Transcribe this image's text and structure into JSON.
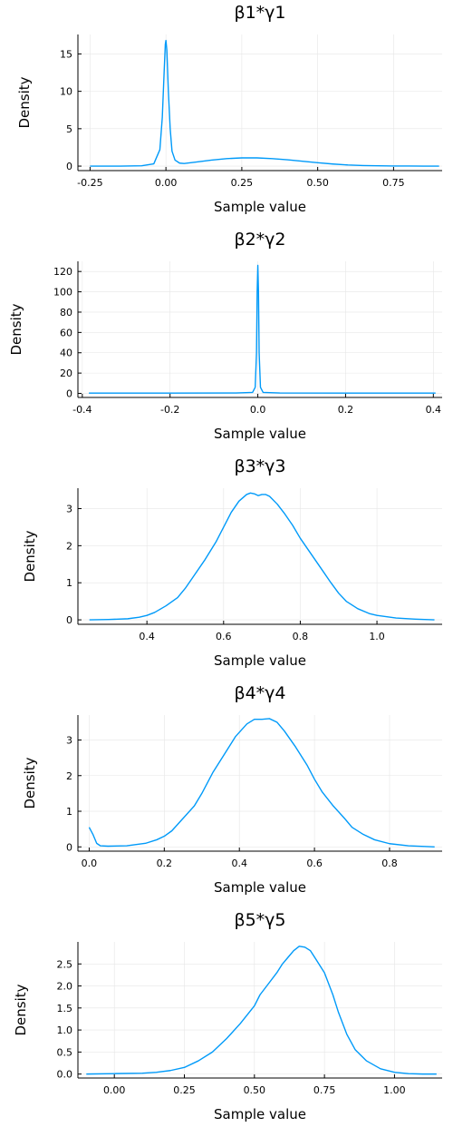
{
  "chart_data": [
    {
      "type": "line",
      "title": "β1*γ1",
      "xlabel": "Sample value",
      "ylabel": "Density",
      "xlim": [
        -0.29,
        0.91
      ],
      "ylim": [
        -0.6,
        17.6
      ],
      "xticks": [
        -0.25,
        0.0,
        0.25,
        0.5,
        0.75
      ],
      "xtick_labels": [
        "-0.25",
        "0.00",
        "0.25",
        "0.50",
        "0.75"
      ],
      "yticks": [
        0,
        5,
        10,
        15
      ],
      "ytick_labels": [
        "0",
        "5",
        "10",
        "15"
      ],
      "grid": true,
      "legend": "none",
      "series": [
        {
          "color": "#009af9",
          "x": [
            -0.25,
            -0.15,
            -0.08,
            -0.04,
            -0.02,
            -0.012,
            -0.006,
            -0.002,
            0.0,
            0.003,
            0.008,
            0.014,
            0.02,
            0.03,
            0.045,
            0.06,
            0.1,
            0.15,
            0.2,
            0.25,
            0.3,
            0.35,
            0.4,
            0.45,
            0.5,
            0.55,
            0.6,
            0.65,
            0.7,
            0.75,
            0.8,
            0.85,
            0.9
          ],
          "y": [
            0.0,
            0.0,
            0.05,
            0.3,
            2.2,
            6.5,
            12.5,
            16.3,
            16.8,
            15.5,
            10.0,
            5.0,
            2.0,
            0.8,
            0.4,
            0.35,
            0.55,
            0.8,
            1.0,
            1.1,
            1.1,
            1.0,
            0.85,
            0.65,
            0.45,
            0.28,
            0.15,
            0.08,
            0.04,
            0.02,
            0.01,
            0.0,
            0.0
          ]
        }
      ]
    },
    {
      "type": "line",
      "title": "β2*γ2",
      "xlabel": "Sample value",
      "ylabel": "Density",
      "xlim": [
        -0.41,
        0.42
      ],
      "ylim": [
        -4,
        130
      ],
      "xticks": [
        -0.4,
        -0.2,
        0.0,
        0.2,
        0.4
      ],
      "xtick_labels": [
        "-0.4",
        "-0.2",
        "0.0",
        "0.2",
        "0.4"
      ],
      "yticks": [
        0,
        20,
        40,
        60,
        80,
        100,
        120
      ],
      "ytick_labels": [
        "0",
        "20",
        "40",
        "60",
        "80",
        "100",
        "120"
      ],
      "grid": true,
      "legend": "none",
      "series": [
        {
          "color": "#009af9",
          "x": [
            -0.385,
            -0.2,
            -0.05,
            -0.012,
            -0.006,
            -0.003,
            -0.0015,
            0.0,
            0.0015,
            0.003,
            0.006,
            0.012,
            0.05,
            0.2,
            0.405
          ],
          "y": [
            0.3,
            0.3,
            0.4,
            1.0,
            6.0,
            40.0,
            100.0,
            126.0,
            100.0,
            40.0,
            6.0,
            1.0,
            0.4,
            0.3,
            0.3
          ]
        }
      ]
    },
    {
      "type": "line",
      "title": "β3*γ3",
      "xlabel": "Sample value",
      "ylabel": "Density",
      "xlim": [
        0.22,
        1.17
      ],
      "ylim": [
        -0.12,
        3.55
      ],
      "xticks": [
        0.4,
        0.6,
        0.8,
        1.0
      ],
      "xtick_labels": [
        "0.4",
        "0.6",
        "0.8",
        "1.0"
      ],
      "yticks": [
        0,
        1,
        2,
        3
      ],
      "ytick_labels": [
        "0",
        "1",
        "2",
        "3"
      ],
      "grid": true,
      "legend": "none",
      "series": [
        {
          "color": "#009af9",
          "x": [
            0.25,
            0.3,
            0.35,
            0.38,
            0.4,
            0.42,
            0.45,
            0.48,
            0.5,
            0.52,
            0.55,
            0.58,
            0.6,
            0.62,
            0.64,
            0.66,
            0.67,
            0.68,
            0.69,
            0.7,
            0.71,
            0.72,
            0.74,
            0.76,
            0.78,
            0.8,
            0.82,
            0.84,
            0.86,
            0.88,
            0.9,
            0.92,
            0.95,
            0.98,
            1.0,
            1.05,
            1.1,
            1.15
          ],
          "y": [
            0.0,
            0.01,
            0.03,
            0.07,
            0.12,
            0.2,
            0.38,
            0.6,
            0.85,
            1.15,
            1.6,
            2.1,
            2.5,
            2.9,
            3.2,
            3.38,
            3.42,
            3.4,
            3.35,
            3.38,
            3.38,
            3.33,
            3.12,
            2.85,
            2.55,
            2.2,
            1.9,
            1.6,
            1.3,
            1.0,
            0.72,
            0.5,
            0.3,
            0.17,
            0.12,
            0.05,
            0.02,
            0.0
          ]
        }
      ]
    },
    {
      "type": "line",
      "title": "β4*γ4",
      "xlabel": "Sample value",
      "ylabel": "Density",
      "xlim": [
        -0.03,
        0.94
      ],
      "ylim": [
        -0.12,
        3.7
      ],
      "xticks": [
        0.0,
        0.2,
        0.4,
        0.6,
        0.8
      ],
      "xtick_labels": [
        "0.0",
        "0.2",
        "0.4",
        "0.6",
        "0.8"
      ],
      "yticks": [
        0,
        1,
        2,
        3
      ],
      "ytick_labels": [
        "0",
        "1",
        "2",
        "3"
      ],
      "grid": true,
      "legend": "none",
      "series": [
        {
          "color": "#009af9",
          "x": [
            0.0,
            0.01,
            0.02,
            0.03,
            0.05,
            0.1,
            0.15,
            0.18,
            0.2,
            0.22,
            0.25,
            0.28,
            0.3,
            0.33,
            0.36,
            0.39,
            0.42,
            0.44,
            0.46,
            0.48,
            0.5,
            0.52,
            0.55,
            0.58,
            0.6,
            0.62,
            0.65,
            0.68,
            0.7,
            0.73,
            0.76,
            0.8,
            0.85,
            0.9,
            0.92
          ],
          "y": [
            0.55,
            0.35,
            0.1,
            0.03,
            0.02,
            0.03,
            0.1,
            0.2,
            0.3,
            0.45,
            0.8,
            1.15,
            1.5,
            2.1,
            2.6,
            3.1,
            3.45,
            3.58,
            3.58,
            3.6,
            3.5,
            3.25,
            2.8,
            2.3,
            1.9,
            1.55,
            1.15,
            0.8,
            0.55,
            0.35,
            0.2,
            0.09,
            0.03,
            0.01,
            0.0
          ]
        }
      ]
    },
    {
      "type": "line",
      "title": "β5*γ5",
      "xlabel": "Sample value",
      "ylabel": "Density",
      "xlim": [
        -0.13,
        1.17
      ],
      "ylim": [
        -0.09,
        3.0
      ],
      "xticks": [
        0.0,
        0.25,
        0.5,
        0.75,
        1.0
      ],
      "xtick_labels": [
        "0.00",
        "0.25",
        "0.50",
        "0.75",
        "1.00"
      ],
      "yticks": [
        0,
        0.5,
        1.0,
        1.5,
        2.0,
        2.5
      ],
      "ytick_labels": [
        "0.0",
        "0.5",
        "1.0",
        "1.5",
        "2.0",
        "2.5"
      ],
      "grid": true,
      "legend": "none",
      "series": [
        {
          "color": "#009af9",
          "x": [
            -0.1,
            0.0,
            0.1,
            0.15,
            0.2,
            0.25,
            0.3,
            0.35,
            0.4,
            0.45,
            0.5,
            0.52,
            0.55,
            0.58,
            0.6,
            0.62,
            0.64,
            0.66,
            0.68,
            0.7,
            0.72,
            0.75,
            0.78,
            0.8,
            0.83,
            0.86,
            0.9,
            0.95,
            1.0,
            1.05,
            1.1,
            1.15
          ],
          "y": [
            0.0,
            0.01,
            0.02,
            0.04,
            0.08,
            0.15,
            0.3,
            0.5,
            0.8,
            1.15,
            1.55,
            1.8,
            2.05,
            2.3,
            2.5,
            2.65,
            2.8,
            2.9,
            2.88,
            2.8,
            2.6,
            2.3,
            1.8,
            1.4,
            0.9,
            0.55,
            0.3,
            0.12,
            0.04,
            0.01,
            0.0,
            0.0
          ]
        }
      ]
    }
  ]
}
